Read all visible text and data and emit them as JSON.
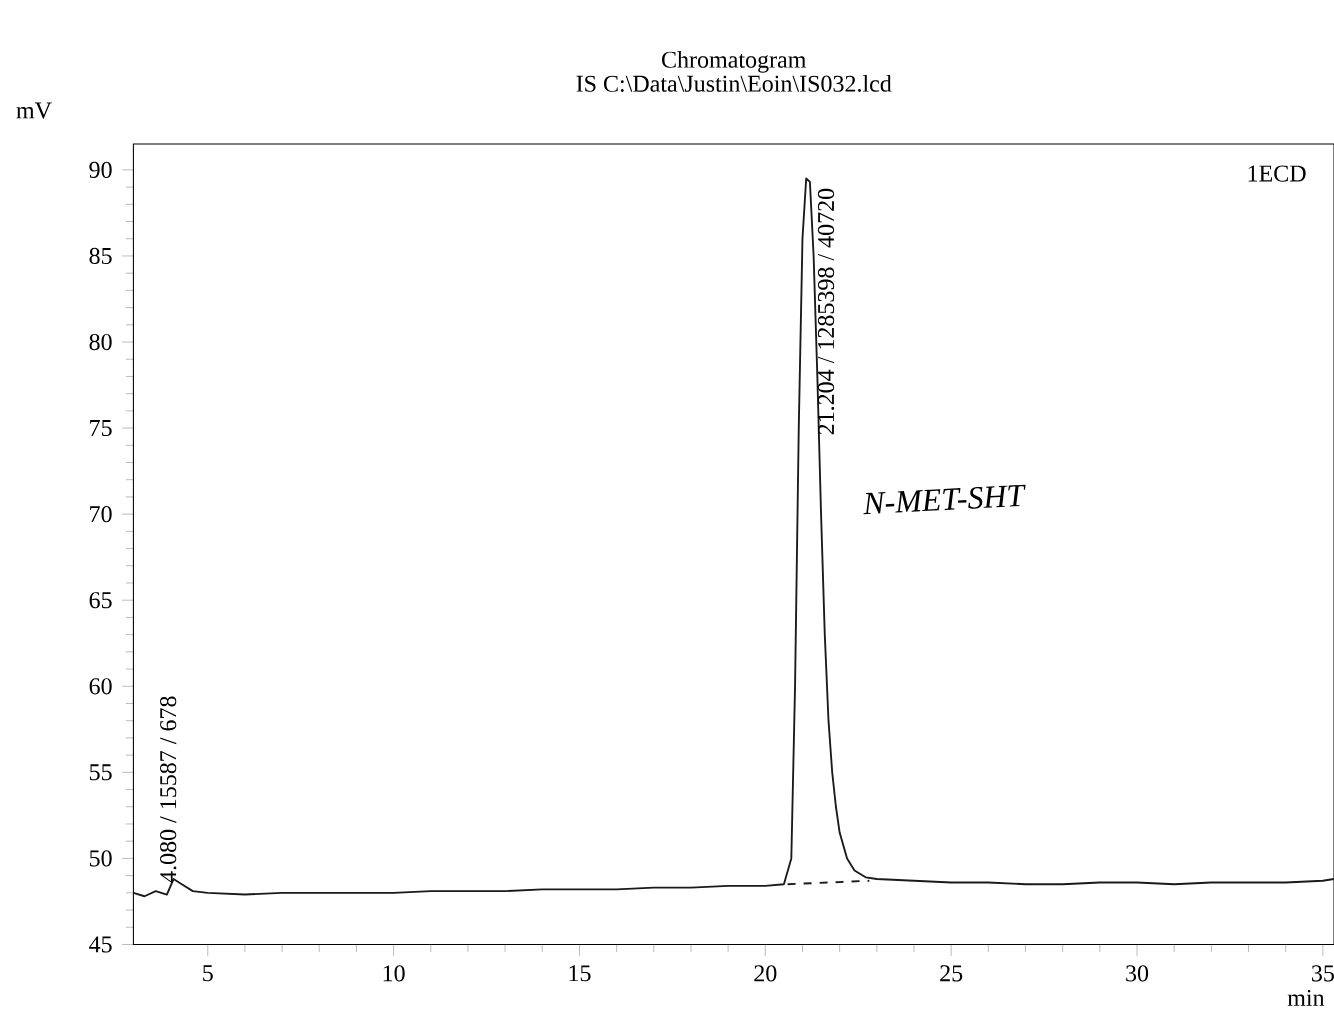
{
  "chart_data": {
    "type": "line",
    "title": "Chromatogram",
    "subtitle": "IS C:\\Data\\Justin\\Eoin\\IS032.lcd",
    "xlabel": "min",
    "ylabel": "mV",
    "xlim": [
      3,
      35.3
    ],
    "ylim": [
      45,
      91.5
    ],
    "xticks": [
      5,
      10,
      15,
      20,
      25,
      30,
      35
    ],
    "yticks": [
      45,
      50,
      55,
      60,
      65,
      70,
      75,
      80,
      85,
      90
    ],
    "series": [
      {
        "color": "#1a1a1a",
        "line_style": "solid",
        "x": [
          3.0,
          3.3,
          3.6,
          3.9,
          4.08,
          4.3,
          4.6,
          5,
          6,
          7,
          8,
          9,
          10,
          11,
          12,
          13,
          14,
          15,
          16,
          17,
          18,
          19,
          20,
          20.5,
          20.7,
          20.8,
          20.9,
          21.0,
          21.1,
          21.2,
          21.3,
          21.4,
          21.5,
          21.6,
          21.7,
          21.8,
          21.9,
          22.0,
          22.2,
          22.4,
          22.7,
          23,
          24,
          25,
          26,
          27,
          28,
          29,
          30,
          31,
          32,
          33,
          34,
          35,
          35.3
        ],
        "values": [
          48.0,
          47.8,
          48.1,
          47.9,
          48.8,
          48.5,
          48.1,
          48.0,
          47.9,
          48.0,
          48.0,
          48.0,
          48.0,
          48.1,
          48.1,
          48.1,
          48.2,
          48.2,
          48.2,
          48.3,
          48.3,
          48.4,
          48.4,
          48.5,
          50,
          60,
          75,
          86,
          89.5,
          89.3,
          85,
          78,
          70,
          63,
          58,
          55,
          53,
          51.5,
          50.0,
          49.3,
          48.9,
          48.8,
          48.7,
          48.6,
          48.6,
          48.5,
          48.5,
          48.6,
          48.6,
          48.5,
          48.6,
          48.6,
          48.6,
          48.7,
          48.8
        ]
      },
      {
        "color": "#1a1a1a",
        "line_style": "dashed",
        "x": [
          20.6,
          22.8
        ],
        "values": [
          48.5,
          48.7
        ]
      }
    ],
    "annotations": [
      {
        "text": "4.080 / 15587 / 678",
        "x": 4.08,
        "y": 48.8
      },
      {
        "text": "21.204 / 1285398 / 40720",
        "x": 21.204,
        "y": 89.5
      },
      "N-MET-SHT",
      "1ECD"
    ]
  }
}
